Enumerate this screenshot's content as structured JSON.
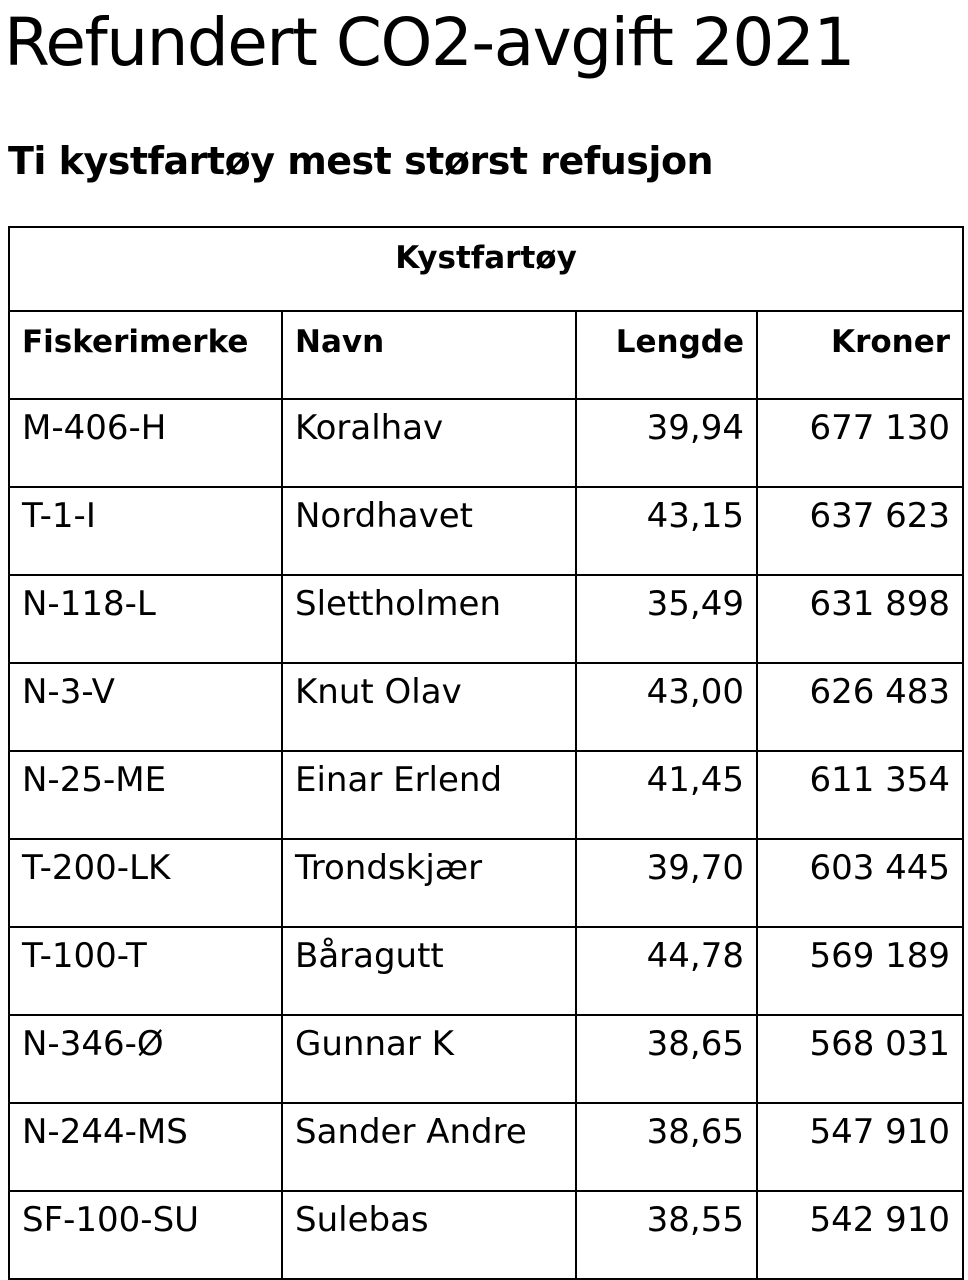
{
  "page": {
    "title": "Refundert CO2-avgift 2021",
    "subtitle": "Ti kystfartøy mest størst refusjon"
  },
  "table": {
    "group_header": "Kystfartøy",
    "columns": [
      "Fiskerimerke",
      "Navn",
      "Lengde",
      "Kroner"
    ],
    "rows": [
      [
        "M-406-H",
        "Koralhav",
        "39,94",
        "677 130"
      ],
      [
        "T-1-I",
        "Nordhavet",
        "43,15",
        "637 623"
      ],
      [
        "N-118-L",
        "Slettholmen",
        "35,49",
        "631 898"
      ],
      [
        "N-3-V",
        "Knut Olav",
        "43,00",
        "626 483"
      ],
      [
        "N-25-ME",
        "Einar Erlend",
        "41,45",
        "611 354"
      ],
      [
        "T-200-LK",
        "Trondskjær",
        "39,70",
        "603 445"
      ],
      [
        "T-100-T",
        "Båragutt",
        "44,78",
        "569 189"
      ],
      [
        "N-346-Ø",
        "Gunnar K",
        "38,65",
        "568 031"
      ],
      [
        "N-244-MS",
        "Sander Andre",
        "38,65",
        "547 910"
      ],
      [
        "SF-100-SU",
        "Sulebas",
        "38,55",
        "542 910"
      ]
    ]
  }
}
